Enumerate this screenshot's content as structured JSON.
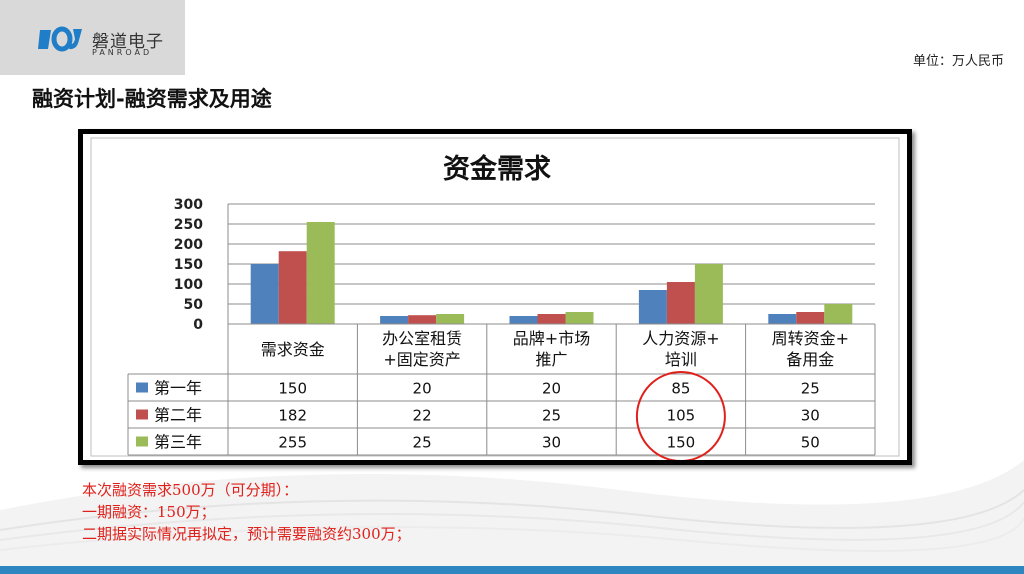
{
  "header": {
    "logo_cn": "磐道电子",
    "logo_en": "PANROAD",
    "unit_label": "单位：万人民币",
    "page_title": "融资计划-融资需求及用途"
  },
  "colors": {
    "series_1": "#4f81bd",
    "series_2": "#c0504d",
    "series_3": "#9bbb59",
    "notes": "#e0201b",
    "logo": "#1f7ec7"
  },
  "chart_data": {
    "type": "bar",
    "title": "资金需求",
    "categories": [
      [
        "需求资金"
      ],
      [
        "办公室租赁",
        "+固定资产"
      ],
      [
        "品牌+市场",
        "推广"
      ],
      [
        "人力资源+",
        "培训"
      ],
      [
        "周转资金+",
        "备用金"
      ]
    ],
    "series": [
      {
        "name": "第一年",
        "values": [
          150,
          20,
          20,
          85,
          25
        ]
      },
      {
        "name": "第二年",
        "values": [
          182,
          22,
          25,
          105,
          30
        ]
      },
      {
        "name": "第三年",
        "values": [
          255,
          25,
          30,
          150,
          50
        ]
      }
    ],
    "y_ticks": [
      0,
      50,
      100,
      150,
      200,
      250,
      300
    ],
    "ylim": [
      0,
      300
    ],
    "grid": true,
    "legend": "data-table",
    "highlight": {
      "category_index": 3,
      "shape": "ellipse",
      "color": "#e0201b"
    }
  },
  "notes": [
    "本次融资需求500万（可分期）：",
    "一期融资：150万；",
    "二期据实际情况再拟定，预计需要融资约300万；"
  ]
}
